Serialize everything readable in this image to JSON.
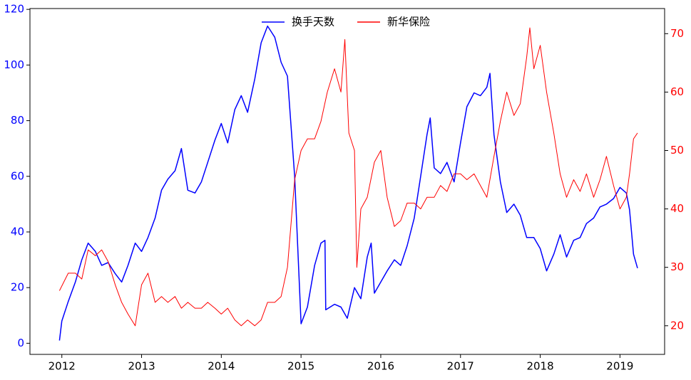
{
  "chart_data": {
    "type": "line",
    "legend": "upper center",
    "xlim": [
      2011.6,
      2019.56
    ],
    "xticks": [
      2012,
      2013,
      2014,
      2015,
      2016,
      2017,
      2018,
      2019
    ],
    "ylim": [
      -4,
      120.3
    ],
    "yticks": [
      0,
      20,
      40,
      60,
      80,
      100,
      120
    ],
    "y2lim": [
      15.1,
      74.3
    ],
    "y2ticks": [
      20,
      30,
      40,
      50,
      60,
      70
    ],
    "series": [
      {
        "name": "换手天数",
        "color": "#0000ff",
        "axis": "y",
        "x": [
          2011.97,
          2012.0,
          2012.08,
          2012.17,
          2012.25,
          2012.33,
          2012.42,
          2012.5,
          2012.58,
          2012.67,
          2012.75,
          2012.83,
          2012.92,
          2013.0,
          2013.08,
          2013.17,
          2013.25,
          2013.33,
          2013.42,
          2013.5,
          2013.58,
          2013.67,
          2013.75,
          2013.83,
          2013.92,
          2014.0,
          2014.08,
          2014.17,
          2014.25,
          2014.33,
          2014.42,
          2014.5,
          2014.58,
          2014.67,
          2014.75,
          2014.83,
          2014.92,
          2015.0,
          2015.08,
          2015.17,
          2015.25,
          2015.3,
          2015.31,
          2015.42,
          2015.5,
          2015.58,
          2015.67,
          2015.75,
          2015.83,
          2015.88,
          2015.92,
          2016.0,
          2016.08,
          2016.17,
          2016.25,
          2016.33,
          2016.42,
          2016.5,
          2016.58,
          2016.62,
          2016.67,
          2016.75,
          2016.83,
          2016.92,
          2017.0,
          2017.08,
          2017.17,
          2017.25,
          2017.33,
          2017.37,
          2017.42,
          2017.5,
          2017.58,
          2017.67,
          2017.75,
          2017.83,
          2017.92,
          2018.0,
          2018.08,
          2018.17,
          2018.25,
          2018.33,
          2018.42,
          2018.5,
          2018.58,
          2018.67,
          2018.75,
          2018.83,
          2018.92,
          2019.0,
          2019.08,
          2019.12,
          2019.17,
          2019.22
        ],
        "values": [
          1,
          8,
          15,
          22,
          30,
          36,
          33,
          28,
          29,
          25,
          22,
          28,
          36,
          33,
          38,
          45,
          55,
          59,
          62,
          70,
          55,
          54,
          58,
          65,
          73,
          79,
          72,
          84,
          89,
          83,
          95,
          108,
          114,
          110,
          101,
          96,
          60,
          7,
          13,
          28,
          36,
          37,
          12,
          14,
          13,
          9,
          20,
          16,
          31,
          36,
          18,
          22,
          26,
          30,
          28,
          35,
          45,
          60,
          75,
          81,
          63,
          61,
          65,
          58,
          72,
          85,
          90,
          89,
          92,
          97,
          75,
          58,
          47,
          50,
          46,
          38,
          38,
          34,
          26,
          32,
          39,
          31,
          37,
          38,
          43,
          45,
          49,
          50,
          52,
          56,
          54,
          48,
          32,
          27
        ]
      },
      {
        "name": "新华保险",
        "color": "#ff0000",
        "axis": "y2",
        "x": [
          2011.97,
          2012.08,
          2012.17,
          2012.25,
          2012.33,
          2012.42,
          2012.5,
          2012.58,
          2012.67,
          2012.75,
          2012.83,
          2012.92,
          2013.0,
          2013.08,
          2013.17,
          2013.25,
          2013.33,
          2013.42,
          2013.5,
          2013.58,
          2013.67,
          2013.75,
          2013.83,
          2013.92,
          2014.0,
          2014.08,
          2014.17,
          2014.25,
          2014.33,
          2014.42,
          2014.5,
          2014.58,
          2014.67,
          2014.75,
          2014.83,
          2014.92,
          2015.0,
          2015.08,
          2015.17,
          2015.25,
          2015.33,
          2015.42,
          2015.5,
          2015.55,
          2015.6,
          2015.67,
          2015.7,
          2015.75,
          2015.83,
          2015.92,
          2016.0,
          2016.08,
          2016.17,
          2016.25,
          2016.33,
          2016.42,
          2016.5,
          2016.58,
          2016.67,
          2016.75,
          2016.83,
          2016.92,
          2017.0,
          2017.08,
          2017.17,
          2017.25,
          2017.33,
          2017.42,
          2017.5,
          2017.58,
          2017.67,
          2017.75,
          2017.83,
          2017.87,
          2017.92,
          2018.0,
          2018.08,
          2018.17,
          2018.25,
          2018.33,
          2018.42,
          2018.5,
          2018.58,
          2018.67,
          2018.75,
          2018.83,
          2018.92,
          2019.0,
          2019.08,
          2019.12,
          2019.17,
          2019.22
        ],
        "values": [
          26,
          29,
          29,
          28,
          33,
          32,
          33,
          31,
          27,
          24,
          22,
          20,
          27,
          29,
          24,
          25,
          24,
          25,
          23,
          24,
          23,
          23,
          24,
          23,
          22,
          23,
          21,
          20,
          21,
          20,
          21,
          24,
          24,
          25,
          30,
          45,
          50,
          52,
          52,
          55,
          60,
          64,
          60,
          69,
          53,
          50,
          30,
          40,
          42,
          48,
          50,
          42,
          37,
          38,
          41,
          41,
          40,
          42,
          42,
          44,
          43,
          46,
          46,
          45,
          46,
          44,
          42,
          49,
          55,
          60,
          56,
          58,
          66,
          71,
          64,
          68,
          60,
          53,
          46,
          42,
          45,
          43,
          46,
          42,
          45,
          49,
          44,
          40,
          42,
          46,
          52,
          53
        ]
      }
    ]
  }
}
